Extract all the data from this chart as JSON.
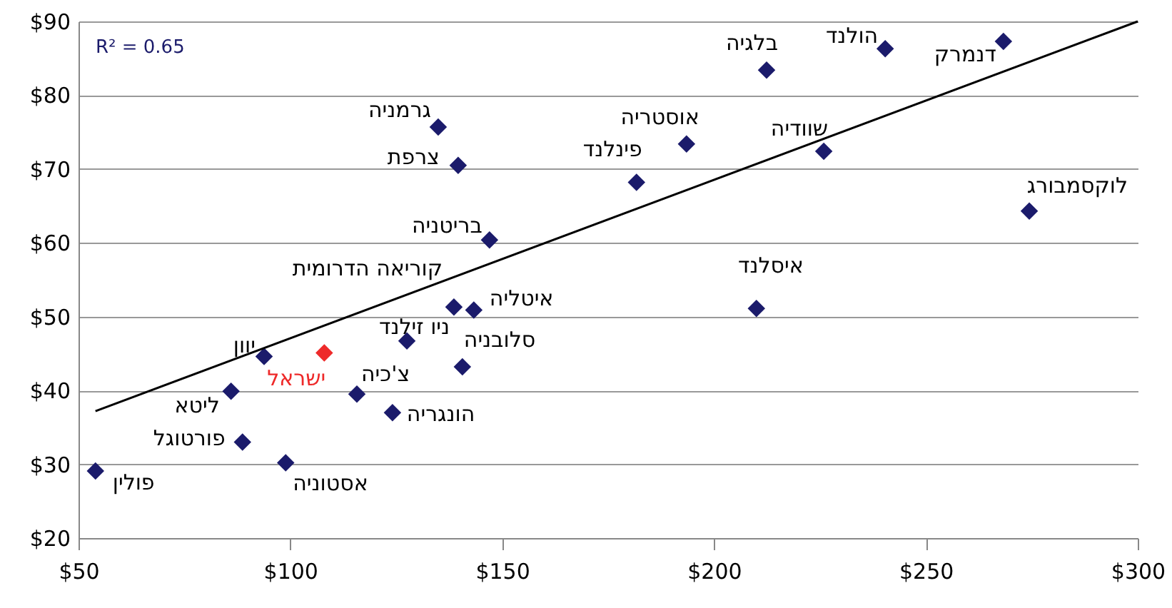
{
  "chart_data": {
    "type": "scatter",
    "marker": "diamond",
    "grid": "y",
    "xlim": [
      50,
      300
    ],
    "ylim": [
      20,
      90
    ],
    "xticks": [
      {
        "value": 50,
        "label": "$50"
      },
      {
        "value": 100,
        "label": "$100"
      },
      {
        "value": 150,
        "label": "$150"
      },
      {
        "value": 200,
        "label": "$200"
      },
      {
        "value": 250,
        "label": "$250"
      },
      {
        "value": 300,
        "label": "$300"
      }
    ],
    "yticks": [
      {
        "value": 20,
        "label": "$20"
      },
      {
        "value": 30,
        "label": "$30"
      },
      {
        "value": 40,
        "label": "$40"
      },
      {
        "value": 50,
        "label": "$50"
      },
      {
        "value": 60,
        "label": "$60"
      },
      {
        "value": 70,
        "label": "$70"
      },
      {
        "value": 80,
        "label": "$80"
      },
      {
        "value": 90,
        "label": "$90"
      }
    ],
    "series": [
      {
        "color": "#1b1b6b",
        "x": [
          54.0,
          98.9,
          88.7,
          86.0,
          93.8,
          108.0,
          115.7,
          124.1,
          127.5,
          140.6,
          138.6,
          143.3,
          147.0,
          139.6,
          134.9,
          181.7,
          193.5,
          212.4,
          225.9,
          240.4,
          268.3,
          274.4,
          210.0
        ],
        "values": [
          29.1,
          30.2,
          33.0,
          39.9,
          44.6,
          45.1,
          39.5,
          37.0,
          46.7,
          43.2,
          51.3,
          50.9,
          60.4,
          70.5,
          75.7,
          68.2,
          73.4,
          83.4,
          72.4,
          86.3,
          87.3,
          64.3,
          51.1
        ],
        "colors": [
          "#1b1b6b",
          "#1b1b6b",
          "#1b1b6b",
          "#1b1b6b",
          "#1b1b6b",
          "#ee2a2a",
          "#1b1b6b",
          "#1b1b6b",
          "#1b1b6b",
          "#1b1b6b",
          "#1b1b6b",
          "#1b1b6b",
          "#1b1b6b",
          "#1b1b6b",
          "#1b1b6b",
          "#1b1b6b",
          "#1b1b6b",
          "#1b1b6b",
          "#1b1b6b",
          "#1b1b6b",
          "#1b1b6b",
          "#1b1b6b",
          "#1b1b6b"
        ]
      },
      {
        "type": "line",
        "marker": "none",
        "color": "#000000",
        "x": [
          54.0,
          300
        ],
        "values": [
          37.2,
          90
        ]
      }
    ],
    "annotations": [
      {
        "text": "פולין",
        "x": 54.0,
        "y": 29.1
      },
      {
        "text": "אסטוניה",
        "x": 98.9,
        "y": 30.2
      },
      {
        "text": "פורטוגל",
        "x": 88.7,
        "y": 33.0
      },
      {
        "text": "ליטא",
        "x": 86.0,
        "y": 39.9
      },
      {
        "text": "יוון",
        "x": 93.8,
        "y": 44.6
      },
      {
        "text": "ישראל",
        "x": 108.0,
        "y": 45.1
      },
      {
        "text": "צ'כיה",
        "x": 115.7,
        "y": 39.5
      },
      {
        "text": "הונגריה",
        "x": 124.1,
        "y": 37.0
      },
      {
        "text": "ניו זילנד",
        "x": 127.5,
        "y": 46.7
      },
      {
        "text": "סלובניה",
        "x": 140.6,
        "y": 43.2
      },
      {
        "text": "קוריאה הדרומית",
        "x": 138.6,
        "y": 51.3
      },
      {
        "text": "איטליה",
        "x": 143.3,
        "y": 50.9
      },
      {
        "text": "בריטניה",
        "x": 147.0,
        "y": 60.4
      },
      {
        "text": "צרפת",
        "x": 139.6,
        "y": 70.5
      },
      {
        "text": "גרמניה",
        "x": 134.9,
        "y": 75.7
      },
      {
        "text": "פינלנד",
        "x": 181.7,
        "y": 68.2
      },
      {
        "text": "אוסטריה",
        "x": 193.5,
        "y": 73.4
      },
      {
        "text": "בלגיה",
        "x": 212.4,
        "y": 83.4
      },
      {
        "text": "שוודיה",
        "x": 225.9,
        "y": 72.4
      },
      {
        "text": "הולנד",
        "x": 240.4,
        "y": 86.3
      },
      {
        "text": "דנמרק",
        "x": 268.3,
        "y": 87.3
      },
      {
        "text": "לוקסמבורג",
        "x": 274.4,
        "y": 64.3
      },
      {
        "text": "איסלנד",
        "x": 210.0,
        "y": 51.1
      },
      "R² = 0.65"
    ]
  }
}
